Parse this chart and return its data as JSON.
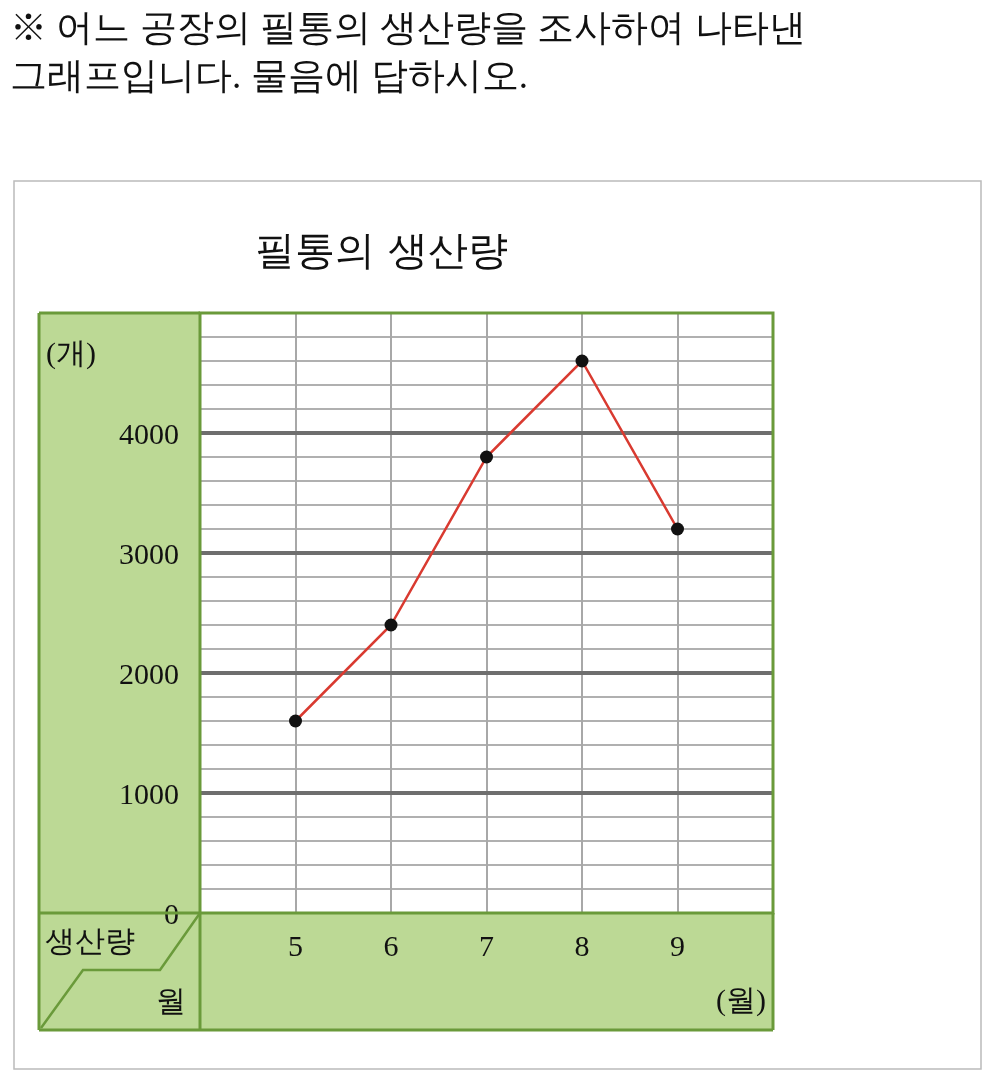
{
  "chart_data": {
    "type": "line",
    "title": "필통의 생산량",
    "ylabel": "(개)",
    "xlabel": "(월)",
    "annotations": [
      "※ 어느 공장의 필통의 생산량을 조사하여 나타낸 그래프입니다. 물음에 답하시오.",
      "생산량",
      "월"
    ],
    "x": [
      5,
      6,
      7,
      8,
      9
    ],
    "series": [
      {
        "color": "#d93a30",
        "values": [
          1600,
          2400,
          3800,
          4600,
          3200
        ]
      }
    ],
    "xlim": [
      4,
      10
    ],
    "xticks": [
      5,
      6,
      7,
      8,
      9
    ],
    "ylim": [
      0,
      5000
    ],
    "yticks": [
      0,
      {
        "value": 200,
        "label": null
      },
      {
        "value": 400,
        "label": null
      },
      {
        "value": 600,
        "label": null
      },
      {
        "value": 800,
        "label": null
      },
      1000,
      {
        "value": 1200,
        "label": null
      },
      {
        "value": 1400,
        "label": null
      },
      {
        "value": 1600,
        "label": null
      },
      {
        "value": 1800,
        "label": null
      },
      2000,
      {
        "value": 2200,
        "label": null
      },
      {
        "value": 2400,
        "label": null
      },
      {
        "value": 2600,
        "label": null
      },
      {
        "value": 2800,
        "label": null
      },
      3000,
      {
        "value": 3200,
        "label": null
      },
      {
        "value": 3400,
        "label": null
      },
      {
        "value": 3600,
        "label": null
      },
      {
        "value": 3800,
        "label": null
      },
      4000,
      {
        "value": 4200,
        "label": null
      },
      {
        "value": 4400,
        "label": null
      },
      {
        "value": 4600,
        "label": null
      },
      {
        "value": 4800,
        "label": null
      },
      {
        "value": 5000,
        "label": null
      }
    ],
    "grid": true,
    "marker": "circle",
    "line_style": "solid",
    "legend": false
  }
}
